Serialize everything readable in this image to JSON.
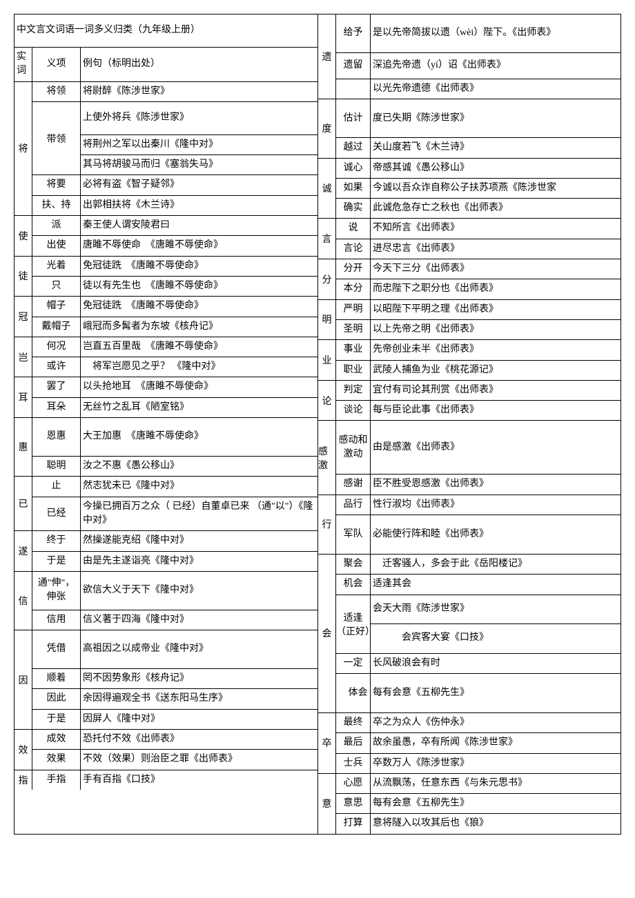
{
  "title": "中文言文词语一词多义归类（九年级上册）",
  "header_left": {
    "c1": "实词",
    "c2": "义项",
    "c3": "例句（标明出处）"
  },
  "left": [
    {
      "word": "将",
      "items": [
        {
          "mean": "将领",
          "ex": "将尉醉《陈涉世家》"
        },
        {
          "mean": "带领",
          "ex_multi": [
            "上使外将兵《陈涉世家》",
            "将荆州之军以出秦川《隆中对》",
            "其马将胡骏马而归《塞翁失马》"
          ]
        },
        {
          "mean": "将要",
          "ex": "必将有盗《智子疑邻》"
        },
        {
          "mean": "扶、持",
          "ex": "出郭相扶将《木兰诗》"
        }
      ]
    },
    {
      "word": "使",
      "items": [
        {
          "mean": "派",
          "ex": "秦王使人谓安陵君曰"
        },
        {
          "mean": "出使",
          "ex": "唐雎不辱使命　《唐雎不辱使命》"
        }
      ]
    },
    {
      "word": "徒",
      "items": [
        {
          "mean": "光着",
          "ex": "免冠徒跣　《唐雎不辱使命》"
        },
        {
          "mean": "只",
          "ex": "徒以有先生也　《唐雎不辱使命》"
        }
      ]
    },
    {
      "word": "冠",
      "items": [
        {
          "mean": "帽子",
          "ex": "免冠徒跣　《唐雎不辱使命》"
        },
        {
          "mean": "戴帽子",
          "ex": "峨冠而多髯者为东坡《核舟记》"
        }
      ]
    },
    {
      "word": "岂",
      "items": [
        {
          "mean": "何况",
          "ex": "岂直五百里哉　《唐雎不辱使命》"
        },
        {
          "mean": "或许",
          "ex": "　将军岂愿见之乎？ 《隆中对》"
        }
      ]
    },
    {
      "word": "耳",
      "items": [
        {
          "mean": "罢了",
          "ex": "以头抢地耳　《唐雎不辱使命》"
        },
        {
          "mean": "耳朵",
          "ex": "无丝竹之乱耳《陋室铭》"
        }
      ]
    },
    {
      "word": "惠",
      "items": [
        {
          "mean": "恩惠",
          "ex": "大王加惠　《唐雎不辱使命》",
          "tall": true
        },
        {
          "mean": "聪明",
          "ex": "汝之不惠《愚公移山》"
        }
      ]
    },
    {
      "word": "已",
      "items": [
        {
          "mean": "止",
          "ex": "然志犹未已《隆中对》"
        },
        {
          "mean": "已经",
          "ex": "今操已拥百万之众（ 已经）自董卓已来 （通\"以\"）《隆中对》"
        }
      ]
    },
    {
      "word": "遂",
      "items": [
        {
          "mean": "终于",
          "ex": "然操遂能克绍《隆中对》"
        },
        {
          "mean": "于是",
          "ex": "由是先主遂诣亮《隆中对》"
        }
      ]
    },
    {
      "word": "信",
      "items": [
        {
          "mean": "通\"伸\"，伸张",
          "ex": "欲信大义于天下《隆中对》",
          "tall": true
        },
        {
          "mean": "信用",
          "ex": "信义著于四海《隆中对》"
        }
      ]
    },
    {
      "word": "因",
      "items": [
        {
          "mean": "凭借",
          "ex": "高祖因之以成帝业《隆中对》",
          "tall": true
        },
        {
          "mean": "顺着",
          "ex": "罔不因势象形《核舟记》"
        },
        {
          "mean": "因此",
          "ex": "余因得遍观全书《送东阳马生序》"
        },
        {
          "mean": "于是",
          "ex": "因屏人《隆中对》"
        }
      ]
    },
    {
      "word": "效",
      "items": [
        {
          "mean": "成效",
          "ex": "恐托付不效《出师表》"
        },
        {
          "mean": "效果",
          "ex": "不效（效果）则治臣之罪《出师表》"
        }
      ]
    },
    {
      "word": "指",
      "items": [
        {
          "mean": "手指",
          "ex": "手有百指《口技》"
        }
      ]
    }
  ],
  "right": [
    {
      "word": "遗",
      "items": [
        {
          "mean": "给予",
          "ex": "是以先帝简拔以遗（wèi）陛下。《出师表》",
          "tall": true
        },
        {
          "mean": "遗留",
          "ex": "深追先帝遗（yí）诏《出师表》",
          "tall2": true
        },
        {
          "mean": "",
          "ex": "以光先帝遗德《出师表》"
        }
      ]
    },
    {
      "word": "度",
      "items": [
        {
          "mean": "估计",
          "ex": "度已失期《陈涉世家》",
          "tall": true
        },
        {
          "mean": "越过",
          "ex": "关山度若飞《木兰诗》"
        }
      ]
    },
    {
      "word": "诚",
      "items": [
        {
          "mean": "诚心",
          "ex": "帝感其诚《愚公移山》"
        },
        {
          "mean": "如果",
          "ex": "今诚以吾众诈自称公子扶苏项燕《陈涉世家"
        },
        {
          "mean": "确实",
          "ex": "此诚危急存亡之秋也《出师表》"
        }
      ]
    },
    {
      "word": "言",
      "items": [
        {
          "mean": "说",
          "ex": "不知所言《出师表》"
        },
        {
          "mean": "言论",
          "ex": "进尽忠言《出师表》"
        }
      ]
    },
    {
      "word": "分",
      "items": [
        {
          "mean": "分开",
          "ex": "今天下三分《出师表》"
        },
        {
          "mean": "本分",
          "ex": "而忠陛下之职分也《出师表》"
        }
      ]
    },
    {
      "word": "明",
      "items": [
        {
          "mean": "严明",
          "ex": "以昭陛下平明之理《出师表》"
        },
        {
          "mean": "圣明",
          "ex": "以上先帝之明《出师表》"
        }
      ]
    },
    {
      "word": "业",
      "items": [
        {
          "mean": "事业",
          "ex": "先帝创业未半《出师表》"
        },
        {
          "mean": "职业",
          "ex": "武陵人捕鱼为业《桃花源记》"
        }
      ]
    },
    {
      "word": "论",
      "items": [
        {
          "mean": "判定",
          "ex": "宜付有司论其刑赏《出师表》"
        },
        {
          "mean": "谈论",
          "ex": "每与臣论此事《出师表》"
        }
      ]
    },
    {
      "word": "感激",
      "items": [
        {
          "mean": "感动和激动",
          "ex": "由是感激《出师表》",
          "tall3": true
        },
        {
          "mean": "感谢",
          "ex": "臣不胜受恩感激《出师表》"
        }
      ]
    },
    {
      "word": "行",
      "items": [
        {
          "mean": "品行",
          "ex": "性行淑均《出师表》"
        },
        {
          "mean": "军队",
          "ex": "必能使行阵和睦《出师表》",
          "tall": true
        }
      ]
    },
    {
      "word": "会",
      "items": [
        {
          "mean": "聚会",
          "ex": "　迁客骚人，多会于此《岳阳楼记》"
        },
        {
          "mean": "机会",
          "ex": "适逢其会"
        },
        {
          "mean": "适逢（正好）",
          "ex_multi2": [
            "会天大雨《陈涉世家》",
            "　　　会宾客大宴《口技》"
          ]
        },
        {
          "mean": "一定",
          "ex": "长风破浪会有时"
        },
        {
          "mean": "　体会",
          "ex": "每有会意《五柳先生》",
          "tall": true
        }
      ]
    },
    {
      "word": "卒",
      "items": [
        {
          "mean": "最终",
          "ex": "卒之为众人《伤仲永》"
        },
        {
          "mean": "最后",
          "ex": "故余虽愚，卒有所闻《陈涉世家》"
        },
        {
          "mean": "士兵",
          "ex": "卒数万人《陈涉世家》"
        }
      ]
    },
    {
      "word": "意",
      "items": [
        {
          "mean": "心愿",
          "ex": "从流飘荡，任意东西《与朱元思书》"
        },
        {
          "mean": "意思",
          "ex": "每有会意《五柳先生》"
        },
        {
          "mean": "打算",
          "ex": "意将隧入以攻其后也《狼》"
        }
      ]
    }
  ]
}
